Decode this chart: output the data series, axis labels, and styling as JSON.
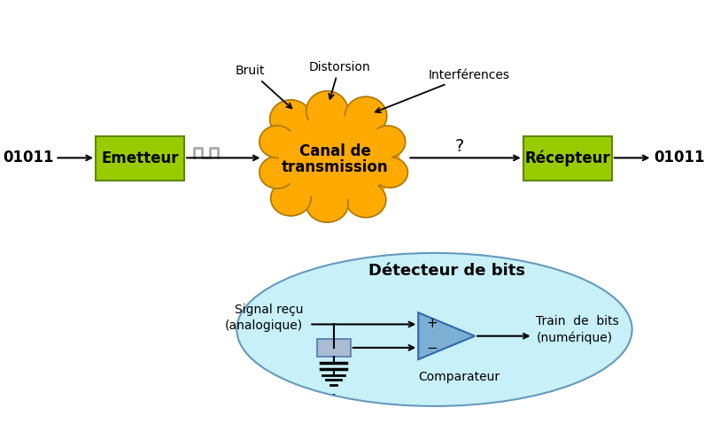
{
  "bg_color": "#ffffff",
  "green_color": "#99cc00",
  "green_edge": "#5a8a00",
  "orange_color": "#ffaa00",
  "orange_edge": "#aa7700",
  "blue_ellipse_color": "#c8f0f8",
  "blue_ellipse_edge": "#6699bb",
  "comparator_fill": "#7bafd4",
  "comparator_edge": "#3366aa",
  "rect_fill": "#aabbd4",
  "rect_edge": "#5577aa",
  "signal_symbol_color": "#aaaaaa",
  "emetteur_label": "Emetteur",
  "recepteur_label": "Récepteur",
  "input_bits": "01011",
  "output_bits": "01011",
  "bruit_label": "Bruit",
  "distorsion_label": "Distorsion",
  "interferences_label": "Interférences",
  "question_mark": "?",
  "detecteur_label": "Détecteur de bits",
  "signal_recu_label": "Signal reçu\n(analogique)",
  "train_bits_label": "Train  de  bits\n(numérique)",
  "comparateur_label": "Comparateur",
  "canal_label_1": "Canal de",
  "canal_label_2": "transmission"
}
